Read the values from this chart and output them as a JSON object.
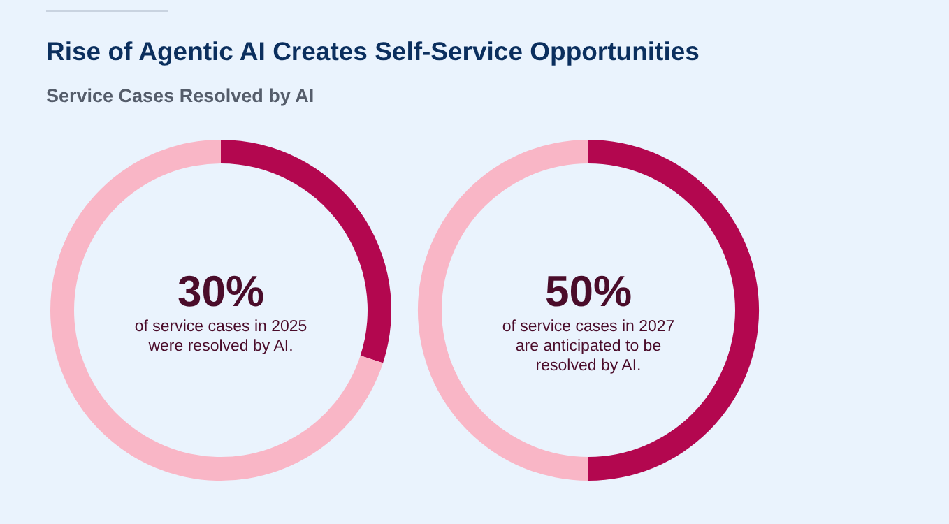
{
  "chart_data": [
    {
      "type": "donut",
      "title": "Rise of Agentic AI Creates Self-Service Opportunities",
      "subtitle": "Service Cases Resolved by AI",
      "categories": [
        null,
        null
      ],
      "values": [
        30,
        70
      ],
      "colors": [
        "#b3074f",
        "#f9b6c6"
      ],
      "value_labels": [
        "30%",
        null
      ],
      "annotations": [
        "of service cases in 2025 were resolved by AI."
      ]
    },
    {
      "type": "donut",
      "categories": [
        null,
        null
      ],
      "values": [
        50,
        50
      ],
      "colors": [
        "#b3074f",
        "#f9b6c6"
      ],
      "value_labels": [
        "50%",
        null
      ],
      "annotations": [
        "of service cases in 2027 are anticipated to be resolved by AI."
      ]
    }
  ]
}
